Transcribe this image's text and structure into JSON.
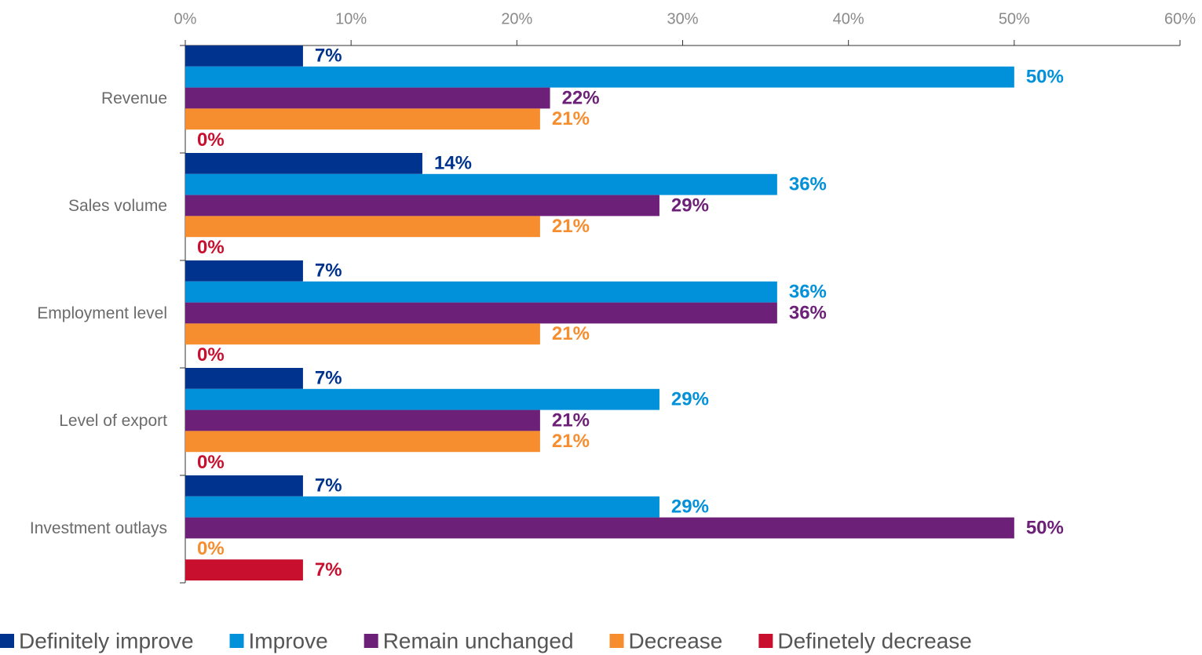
{
  "chart_data": {
    "type": "bar",
    "orientation": "horizontal",
    "categories": [
      "Revenue",
      "Sales volume",
      "Employment level",
      "Level of export",
      "Investment outlays"
    ],
    "series": [
      {
        "name": "Definitely improve",
        "color": "#00338d",
        "values": [
          7.1,
          14.3,
          7.1,
          7.1,
          7.1
        ],
        "value_labels": [
          "7%",
          "14%",
          "7%",
          "7%",
          "7%"
        ]
      },
      {
        "name": "Improve",
        "color": "#0091da",
        "values": [
          50,
          35.7,
          35.7,
          28.6,
          28.6
        ],
        "value_labels": [
          "50%",
          "36%",
          "36%",
          "29%",
          "29%"
        ]
      },
      {
        "name": "Remain unchanged",
        "color": "#6d2077",
        "values": [
          22,
          28.6,
          35.7,
          21.4,
          50
        ],
        "value_labels": [
          "22%",
          "29%",
          "36%",
          "21%",
          "50%"
        ]
      },
      {
        "name": "Decrease",
        "color": "#f68d2e",
        "values": [
          21.4,
          21.4,
          21.4,
          21.4,
          0
        ],
        "value_labels": [
          "21%",
          "21%",
          "21%",
          "21%",
          "0%"
        ]
      },
      {
        "name": "Definetely decrease",
        "color": "#c8102e",
        "values": [
          0,
          0,
          0,
          0,
          7.1
        ],
        "value_labels": [
          "0%",
          "0%",
          "0%",
          "0%",
          "7%"
        ]
      }
    ],
    "xlim": [
      0,
      60
    ],
    "xticks": [
      {
        "value": 0,
        "label": "0%"
      },
      {
        "value": 10,
        "label": "10%"
      },
      {
        "value": 20,
        "label": "20%"
      },
      {
        "value": 30,
        "label": "30%"
      },
      {
        "value": 40,
        "label": "40%"
      },
      {
        "value": 50,
        "label": "50%"
      },
      {
        "value": 60,
        "label": "60%"
      }
    ],
    "legend": "bottom-left"
  }
}
